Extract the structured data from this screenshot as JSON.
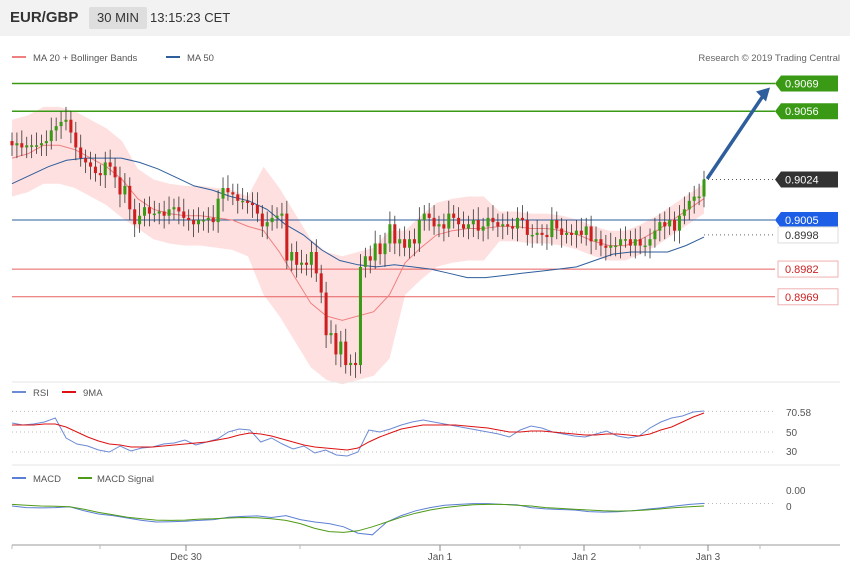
{
  "header": {
    "pair": "EUR/GBP",
    "timeframe": "30 MIN",
    "time": "13:15:23 CET"
  },
  "credit": "Research © 2019 Trading Central",
  "colors": {
    "bullish": "#3a9a16",
    "bearish": "#cc1f1f",
    "price_tag": "#333333",
    "ma50": "#2e5e9b",
    "ma20": "#ef8080",
    "bands": "#ffd6d6",
    "support": "#e66060",
    "arrow": "#2e5e9b",
    "macd": "#5b7fd4",
    "macd_signal": "#4f9a16",
    "rsi": "#6d8ad4",
    "rsi_ma": "#dd1111"
  },
  "chart_data": [
    {
      "type": "candlestick",
      "legend": [
        "MA 20 + Bollinger Bands",
        "MA 50"
      ],
      "x_ticks": [
        "Dec 30",
        "Jan 1",
        "Jan 2",
        "Jan 3"
      ],
      "y_range": [
        0.893,
        0.908
      ],
      "last_price": "0.9024",
      "levels": [
        {
          "value": "0.9069",
          "kind": "resistance"
        },
        {
          "value": "0.9056",
          "kind": "resistance"
        },
        {
          "value": "0.9005",
          "kind": "pivot"
        },
        {
          "value": "0.8998",
          "kind": "ma"
        },
        {
          "value": "0.8982",
          "kind": "support"
        },
        {
          "value": "0.8969",
          "kind": "support"
        }
      ],
      "close": [
        0.904,
        0.9041,
        0.9039,
        0.904,
        0.904,
        0.904,
        0.9041,
        0.9042,
        0.9047,
        0.9049,
        0.9051,
        0.9052,
        0.9046,
        0.9039,
        0.9034,
        0.9032,
        0.903,
        0.9027,
        0.9026,
        0.9032,
        0.903,
        0.9025,
        0.9017,
        0.9021,
        0.901,
        0.9003,
        0.9007,
        0.9011,
        0.9008,
        0.9008,
        0.9009,
        0.9007,
        0.901,
        0.9011,
        0.9009,
        0.9006,
        0.9005,
        0.9003,
        0.9005,
        0.9005,
        0.9006,
        0.9004,
        0.9015,
        0.902,
        0.9018,
        0.9017,
        0.9014,
        0.9014,
        0.9013,
        0.9012,
        0.9008,
        0.9002,
        0.9004,
        0.9006,
        0.9007,
        0.9008,
        0.8986,
        0.899,
        0.8984,
        0.8985,
        0.8984,
        0.899,
        0.898,
        0.8971,
        0.8951,
        0.8952,
        0.8942,
        0.8948,
        0.8937,
        0.8938,
        0.8937,
        0.8983,
        0.8988,
        0.8986,
        0.8994,
        0.8989,
        0.8994,
        0.9003,
        0.8994,
        0.8996,
        0.8992,
        0.8996,
        0.8994,
        0.9005,
        0.9008,
        0.9006,
        0.9002,
        0.9003,
        0.9001,
        0.9008,
        0.9006,
        0.9003,
        0.9001,
        0.9003,
        0.9005,
        0.9,
        0.9002,
        0.9006,
        0.9004,
        0.9002,
        0.9003,
        0.9002,
        0.9001,
        0.9006,
        0.9005,
        0.8998,
        0.8998,
        0.8999,
        0.8998,
        0.8997,
        0.9005,
        0.9001,
        0.8998,
        0.8999,
        0.8998,
        0.9,
        0.8998,
        0.9002,
        0.8995,
        0.8996,
        0.8993,
        0.8992,
        0.8993,
        0.8993,
        0.8996,
        0.8996,
        0.8993,
        0.8996,
        0.8993,
        0.8993,
        0.8996,
        0.9,
        0.9004,
        0.9002,
        0.9005,
        0.9,
        0.9007,
        0.901,
        0.9014,
        0.9016,
        0.9016,
        0.9024
      ],
      "series": [
        {
          "name": "MA 20 + Bollinger Bands",
          "values": [
            0.9034,
            0.9036,
            0.904,
            0.904,
            0.9038,
            0.9034,
            0.903,
            0.9024,
            0.9015,
            0.901,
            0.9008,
            0.9007,
            0.9007,
            0.9006,
            0.9005,
            0.9002,
            0.9,
            0.899,
            0.8978,
            0.8966,
            0.896,
            0.8958,
            0.896,
            0.8962,
            0.897,
            0.8985,
            0.8992,
            0.8998,
            0.9,
            0.9001,
            0.9001,
            0.9002,
            0.9002,
            0.9001,
            0.9001,
            0.9,
            0.8998,
            0.8995,
            0.8993,
            0.8993,
            0.8996,
            0.9,
            0.9005,
            0.901,
            0.9015
          ]
        },
        {
          "name": "MA 50",
          "values": [
            0.9022,
            0.9026,
            0.903,
            0.9033,
            0.9034,
            0.9034,
            0.9034,
            0.9032,
            0.9029,
            0.9025,
            0.9021,
            0.9019,
            0.9016,
            0.9014,
            0.901,
            0.9003,
            0.8998,
            0.8991,
            0.8986,
            0.8984,
            0.8983,
            0.8984,
            0.8983,
            0.8982,
            0.898,
            0.8978,
            0.8978,
            0.8979,
            0.898,
            0.8981,
            0.8982,
            0.8983,
            0.8986,
            0.8989,
            0.899,
            0.899,
            0.899,
            0.8993,
            0.8997
          ]
        }
      ]
    },
    {
      "type": "line",
      "legend": [
        "RSI",
        "9MA"
      ],
      "last_value": "70.58",
      "y_ticks": [
        "50",
        "30"
      ],
      "y_range": [
        20,
        80
      ],
      "series": [
        {
          "name": "RSI",
          "values": [
            59,
            57,
            58,
            60,
            64,
            44,
            38,
            36,
            32,
            30,
            36,
            31,
            34,
            35,
            38,
            39,
            42,
            37,
            40,
            43,
            50,
            53,
            52,
            40,
            44,
            38,
            33,
            36,
            29,
            32,
            27,
            26,
            30,
            52,
            50,
            53,
            57,
            60,
            62,
            60,
            58,
            56,
            54,
            52,
            50,
            48,
            45,
            52,
            56,
            54,
            50,
            48,
            46,
            45,
            48,
            51,
            46,
            44,
            46,
            54,
            60,
            64,
            66,
            70,
            71
          ]
        },
        {
          "name": "9MA",
          "values": [
            57,
            57,
            57,
            58,
            58,
            55,
            50,
            45,
            41,
            38,
            37,
            35,
            35,
            35,
            36,
            37,
            38,
            39,
            40,
            42,
            44,
            47,
            49,
            48,
            46,
            43,
            40,
            37,
            35,
            34,
            33,
            32,
            34,
            40,
            45,
            49,
            53,
            55,
            57,
            57,
            57,
            57,
            56,
            55,
            54,
            52,
            50,
            50,
            51,
            51,
            50,
            49,
            48,
            47,
            47,
            48,
            48,
            47,
            46,
            48,
            52,
            55,
            60,
            65,
            69
          ]
        }
      ]
    },
    {
      "type": "line",
      "legend": [
        "MACD",
        "MACD Signal"
      ],
      "last_value": "0.00",
      "y_ticks": [
        "0"
      ],
      "series": [
        {
          "name": "MACD",
          "values": [
            0.0,
            -0.0001,
            -0.00012,
            -0.0001,
            -5e-05,
            -0.0003,
            -0.0005,
            -0.0006,
            -0.00075,
            -0.0009,
            -0.001,
            -0.00098,
            -0.00095,
            -0.0009,
            -0.00085,
            -0.0007,
            -0.00065,
            -0.00062,
            -0.00072,
            -0.0006,
            -0.00085,
            -0.001,
            -0.0011,
            -0.0013,
            -0.0017,
            -0.0018,
            -0.001,
            -0.0006,
            -0.0003,
            -0.0001,
            5e-05,
            0.0001,
            0.00015,
            0.00015,
            0.0001,
            8e-05,
            -0.0001,
            -0.00018,
            -0.00022,
            -0.00025,
            -0.00035,
            -0.00038,
            -0.00036,
            -0.0003,
            -0.0002,
            -0.00012,
            0.0,
            0.0001,
            0.00016
          ]
        },
        {
          "name": "MACD Signal",
          "values": [
            0.0001,
            5e-05,
            0.0,
            -2e-05,
            -5e-05,
            -0.0002,
            -0.0004,
            -0.00055,
            -0.0007,
            -0.0008,
            -0.00088,
            -0.0009,
            -0.00088,
            -0.00082,
            -0.0008,
            -0.00075,
            -0.00072,
            -0.00074,
            -0.0008,
            -0.0009,
            -0.0011,
            -0.0014,
            -0.0016,
            -0.00165,
            -0.00155,
            -0.0013,
            -0.001,
            -0.0007,
            -0.00045,
            -0.00025,
            -0.0001,
            0.0,
            8e-05,
            0.0001,
            0.0001,
            5e-05,
            0.0,
            -0.0001,
            -0.00015,
            -0.0002,
            -0.00025,
            -0.0003,
            -0.00032,
            -0.0003,
            -0.00025,
            -0.00018,
            -0.0001,
            -5e-05,
            0.0
          ]
        }
      ]
    }
  ]
}
